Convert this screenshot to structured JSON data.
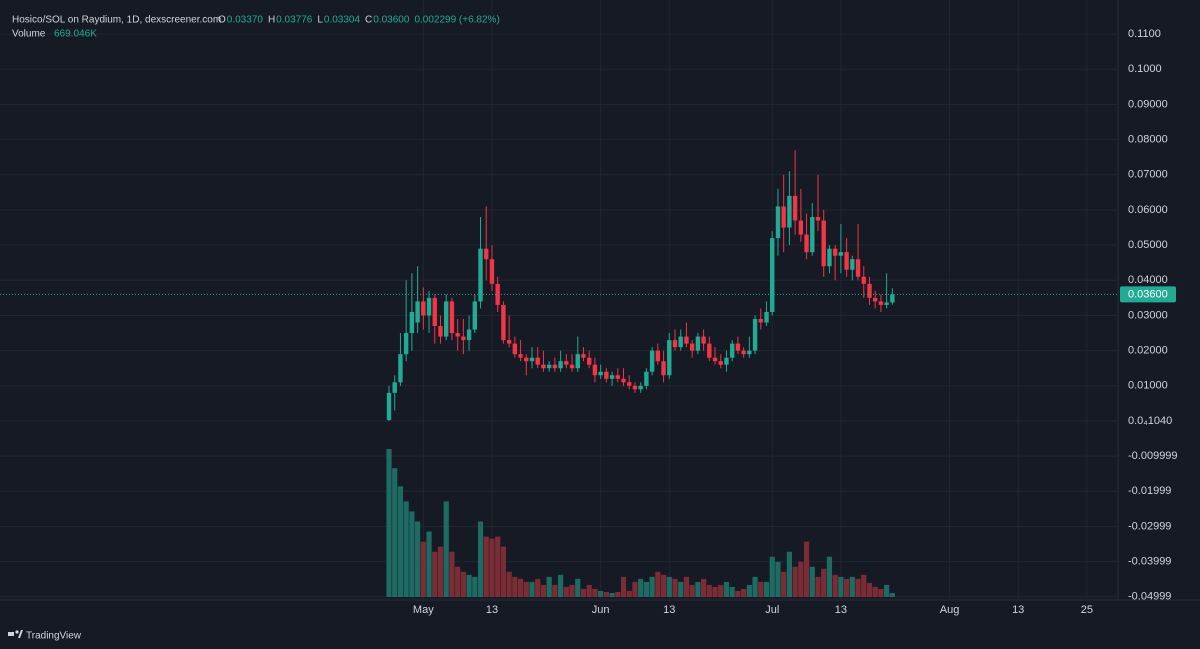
{
  "chart_data": {
    "type": "candlestick",
    "title": "Hosico/SOL on Raydium, 1D, dexscreener.com",
    "ohlc_fields": [
      {
        "key": "O",
        "text": "0.03370"
      },
      {
        "key": "H",
        "text": "0.03776"
      },
      {
        "key": "L",
        "text": "0.03304"
      },
      {
        "key": "C",
        "text": "0.03600"
      }
    ],
    "change_label": "0.002299 (+6.82%)",
    "volume_name": "Volume",
    "volume_label": "669.046K",
    "last_price_label": "0.03600",
    "up_color": "#22ab94",
    "down_color": "#f23645",
    "volume_up_color": "#1d6b62",
    "volume_down_color": "#7b2d35",
    "x": [
      "04-25",
      "04-26",
      "04-27",
      "04-28",
      "04-29",
      "04-30",
      "05-01",
      "05-02",
      "05-03",
      "05-04",
      "05-05",
      "05-06",
      "05-07",
      "05-08",
      "05-09",
      "05-10",
      "05-11",
      "05-12",
      "05-13",
      "05-14",
      "05-15",
      "05-16",
      "05-17",
      "05-18",
      "05-19",
      "05-20",
      "05-21",
      "05-22",
      "05-23",
      "05-24",
      "05-25",
      "05-26",
      "05-27",
      "05-28",
      "05-29",
      "05-30",
      "05-31",
      "06-01",
      "06-02",
      "06-03",
      "06-04",
      "06-05",
      "06-06",
      "06-07",
      "06-08",
      "06-09",
      "06-10",
      "06-11",
      "06-12",
      "06-13",
      "06-14",
      "06-15",
      "06-16",
      "06-17",
      "06-18",
      "06-19",
      "06-20",
      "06-21",
      "06-22",
      "06-23",
      "06-24",
      "06-25",
      "06-26",
      "06-27",
      "06-28",
      "06-29",
      "06-30",
      "07-01",
      "07-02",
      "07-03",
      "07-04",
      "07-05",
      "07-06",
      "07-07",
      "07-08",
      "07-09",
      "07-10",
      "07-11",
      "07-12",
      "07-13",
      "07-14",
      "07-15",
      "07-16",
      "07-17",
      "07-18",
      "07-19",
      "07-20",
      "07-21",
      "07-22"
    ],
    "open": [
      0.0003,
      0.008,
      0.011,
      0.019,
      0.025,
      0.028,
      0.034,
      0.03,
      0.035,
      0.027,
      0.024,
      0.034,
      0.025,
      0.024,
      0.023,
      0.026,
      0.034,
      0.049,
      0.046,
      0.039,
      0.033,
      0.023,
      0.022,
      0.019,
      0.018,
      0.017,
      0.018,
      0.016,
      0.015,
      0.016,
      0.015,
      0.017,
      0.016,
      0.015,
      0.019,
      0.018,
      0.016,
      0.013,
      0.014,
      0.012,
      0.013,
      0.012,
      0.011,
      0.01,
      0.009,
      0.01,
      0.014,
      0.02,
      0.017,
      0.013,
      0.023,
      0.021,
      0.024,
      0.022,
      0.02,
      0.024,
      0.022,
      0.018,
      0.017,
      0.016,
      0.018,
      0.022,
      0.02,
      0.019,
      0.02,
      0.029,
      0.028,
      0.031,
      0.052,
      0.061,
      0.055,
      0.064,
      0.057,
      0.053,
      0.048,
      0.058,
      0.057,
      0.044,
      0.049,
      0.047,
      0.048,
      0.043,
      0.046,
      0.041,
      0.039,
      0.035,
      0.034,
      0.033,
      0.0337
    ],
    "high": [
      0.01,
      0.013,
      0.025,
      0.04,
      0.042,
      0.044,
      0.038,
      0.037,
      0.036,
      0.03,
      0.036,
      0.035,
      0.029,
      0.029,
      0.03,
      0.036,
      0.058,
      0.061,
      0.05,
      0.041,
      0.034,
      0.03,
      0.024,
      0.023,
      0.019,
      0.021,
      0.021,
      0.02,
      0.017,
      0.018,
      0.02,
      0.019,
      0.019,
      0.024,
      0.021,
      0.02,
      0.018,
      0.016,
      0.015,
      0.014,
      0.015,
      0.015,
      0.013,
      0.011,
      0.011,
      0.015,
      0.021,
      0.022,
      0.02,
      0.025,
      0.026,
      0.026,
      0.028,
      0.023,
      0.025,
      0.026,
      0.024,
      0.021,
      0.019,
      0.02,
      0.023,
      0.024,
      0.021,
      0.024,
      0.03,
      0.032,
      0.034,
      0.054,
      0.066,
      0.07,
      0.071,
      0.077,
      0.066,
      0.059,
      0.062,
      0.07,
      0.06,
      0.05,
      0.05,
      0.056,
      0.052,
      0.047,
      0.056,
      0.044,
      0.041,
      0.037,
      0.036,
      0.042,
      0.03776
    ],
    "low": [
      0.0,
      0.003,
      0.01,
      0.017,
      0.02,
      0.025,
      0.026,
      0.025,
      0.022,
      0.022,
      0.023,
      0.023,
      0.02,
      0.019,
      0.02,
      0.025,
      0.032,
      0.04,
      0.037,
      0.031,
      0.022,
      0.021,
      0.018,
      0.017,
      0.013,
      0.015,
      0.015,
      0.014,
      0.014,
      0.014,
      0.014,
      0.015,
      0.014,
      0.014,
      0.017,
      0.015,
      0.011,
      0.012,
      0.011,
      0.01,
      0.011,
      0.01,
      0.009,
      0.008,
      0.008,
      0.009,
      0.013,
      0.016,
      0.011,
      0.012,
      0.02,
      0.02,
      0.021,
      0.018,
      0.019,
      0.02,
      0.017,
      0.016,
      0.015,
      0.014,
      0.017,
      0.019,
      0.018,
      0.018,
      0.019,
      0.026,
      0.027,
      0.03,
      0.047,
      0.048,
      0.05,
      0.053,
      0.051,
      0.046,
      0.047,
      0.054,
      0.041,
      0.042,
      0.04,
      0.042,
      0.041,
      0.04,
      0.04,
      0.035,
      0.033,
      0.032,
      0.031,
      0.032,
      0.03304
    ],
    "close": [
      0.008,
      0.011,
      0.019,
      0.025,
      0.031,
      0.034,
      0.03,
      0.035,
      0.027,
      0.024,
      0.034,
      0.025,
      0.024,
      0.023,
      0.026,
      0.034,
      0.049,
      0.046,
      0.039,
      0.033,
      0.023,
      0.022,
      0.019,
      0.018,
      0.017,
      0.018,
      0.016,
      0.015,
      0.016,
      0.015,
      0.017,
      0.016,
      0.015,
      0.019,
      0.018,
      0.016,
      0.013,
      0.014,
      0.012,
      0.013,
      0.012,
      0.011,
      0.01,
      0.009,
      0.01,
      0.014,
      0.02,
      0.017,
      0.013,
      0.023,
      0.021,
      0.024,
      0.022,
      0.02,
      0.024,
      0.022,
      0.018,
      0.017,
      0.016,
      0.018,
      0.022,
      0.02,
      0.019,
      0.02,
      0.029,
      0.028,
      0.031,
      0.052,
      0.061,
      0.055,
      0.064,
      0.057,
      0.053,
      0.048,
      0.058,
      0.057,
      0.044,
      0.049,
      0.047,
      0.048,
      0.043,
      0.046,
      0.041,
      0.039,
      0.035,
      0.034,
      0.033,
      0.0337,
      0.036
    ],
    "volume": [
      24549,
      21376,
      18370,
      15865,
      14195,
      12525,
      9185,
      10855,
      7515,
      8350,
      15865,
      7515,
      5010,
      4175,
      3674,
      3340,
      12525,
      10020,
      9686,
      10020,
      8350,
      4175,
      3340,
      3006,
      2505,
      2505,
      3006,
      2004,
      3340,
      2004,
      3674,
      1670,
      2004,
      3006,
      1336,
      2004,
      1336,
      1002,
      835,
      668,
      835,
      3340,
      1002,
      2505,
      3006,
      2505,
      3340,
      4175,
      3674,
      3340,
      3006,
      2505,
      3340,
      2004,
      2505,
      3006,
      2004,
      1670,
      2004,
      2505,
      1670,
      1002,
      1336,
      2004,
      3340,
      2505,
      2505,
      6680,
      5845,
      4175,
      7515,
      5010,
      5845,
      9185,
      5010,
      3340,
      4676,
      6680,
      3674,
      3340,
      3006,
      3340,
      3006,
      3674,
      2338,
      1670,
      1336,
      2004,
      669.046
    ],
    "ylim": [
      -0.0509,
      0.1197
    ],
    "yticks": [
      {
        "value": 0.11,
        "label": "0.1100"
      },
      {
        "value": 0.1,
        "label": "0.1000"
      },
      {
        "value": 0.09,
        "label": "0.09000"
      },
      {
        "value": 0.08,
        "label": "0.08000"
      },
      {
        "value": 0.07,
        "label": "0.07000"
      },
      {
        "value": 0.06,
        "label": "0.06000"
      },
      {
        "value": 0.05,
        "label": "0.05000"
      },
      {
        "value": 0.04,
        "label": "0.04000"
      },
      {
        "value": 0.03,
        "label": "0.03000"
      },
      {
        "value": 0.02,
        "label": "0.02000"
      },
      {
        "value": 0.01,
        "label": "0.01000"
      },
      {
        "value": 1.04e-05,
        "label": "0.0₄1040"
      },
      {
        "value": -0.009999,
        "label": "-0.009999"
      },
      {
        "value": -0.01999,
        "label": "-0.01999"
      },
      {
        "value": -0.02999,
        "label": "-0.02999"
      },
      {
        "value": -0.03999,
        "label": "-0.03999"
      },
      {
        "value": -0.04999,
        "label": "-0.04999"
      }
    ],
    "xticks": [
      {
        "value": "05-01",
        "label": "May"
      },
      {
        "value": "05-13",
        "label": "13"
      },
      {
        "value": "06-01",
        "label": "Jun"
      },
      {
        "value": "06-13",
        "label": "13"
      },
      {
        "value": "07-01",
        "label": "Jul"
      },
      {
        "value": "07-13",
        "label": "13"
      },
      {
        "value": "08-01",
        "label": "Aug"
      },
      {
        "value": "08-13",
        "label": "13"
      },
      {
        "value": "08-25",
        "label": "25"
      }
    ],
    "grid": true
  },
  "footer": {
    "brand": "TradingView"
  }
}
